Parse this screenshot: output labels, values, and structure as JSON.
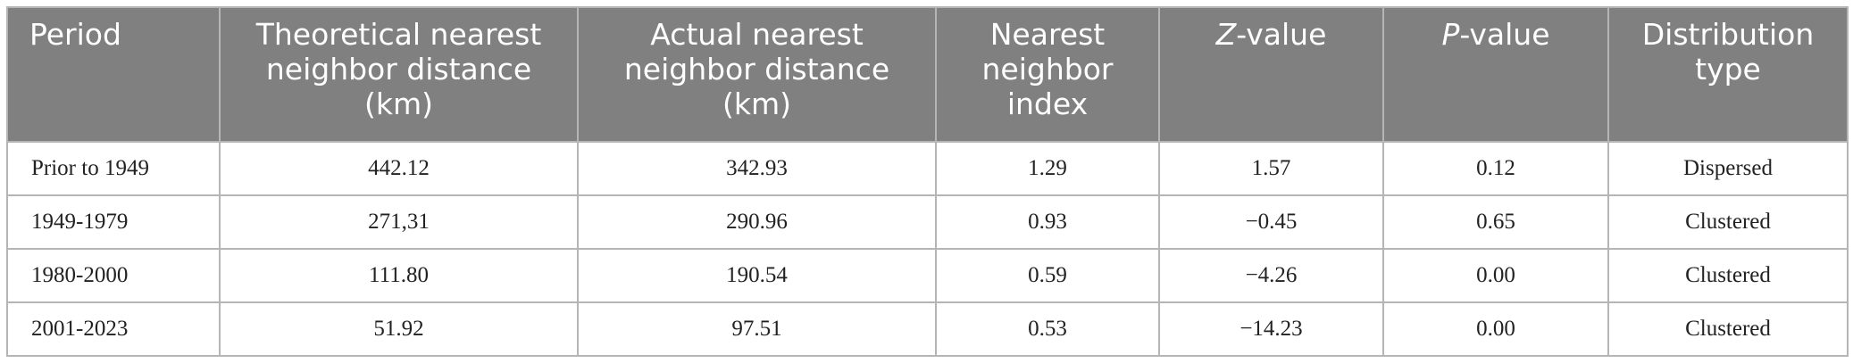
{
  "table": {
    "headers": [
      "Period",
      "Theoretical nearest neighbor distance (km)",
      "Actual nearest neighbor distance (km)",
      "Nearest neighbor index",
      {
        "emphasis": "Z",
        "text": "-value"
      },
      {
        "emphasis": "P",
        "text": "-value"
      },
      "Distribution type"
    ],
    "rows": [
      [
        "Prior to 1949",
        "442.12",
        "342.93",
        "1.29",
        "1.57",
        "0.12",
        "Dispersed"
      ],
      [
        "1949-1979",
        "271,31",
        "290.96",
        "0.93",
        "−0.45",
        "0.65",
        "Clustered"
      ],
      [
        "1980-2000",
        "111.80",
        "190.54",
        "0.59",
        "−4.26",
        "0.00",
        "Clustered"
      ],
      [
        "2001-2023",
        "51.92",
        "97.51",
        "0.53",
        "−14.23",
        "0.00",
        "Clustered"
      ]
    ]
  }
}
